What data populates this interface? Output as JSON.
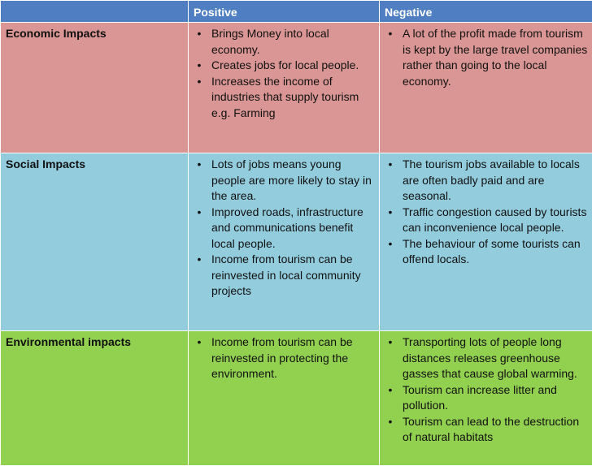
{
  "header": {
    "corner": "",
    "positive": "Positive",
    "negative": "Negative"
  },
  "bullet_glyph": "•",
  "rows": [
    {
      "label": "Economic Impacts",
      "positive": [
        "Brings Money into local economy.",
        "Creates jobs for local people.",
        "Increases the income of industries that supply tourism e.g. Farming"
      ],
      "negative": [
        "A lot of the profit made from tourism is kept by the large travel companies rather than going to the local economy."
      ]
    },
    {
      "label": "Social Impacts",
      "positive": [
        "Lots of jobs means young people are more likely to stay in the area.",
        "Improved roads, infrastructure and communications benefit local people.",
        "Income from tourism can be reinvested in local community projects"
      ],
      "negative": [
        "The tourism jobs available to locals are often badly paid and are seasonal.",
        "Traffic congestion caused by tourists can inconvenience local people.",
        "The behaviour of some tourists can offend locals."
      ]
    },
    {
      "label": "Environmental impacts",
      "positive": [
        "Income from tourism can be reinvested in protecting the environment."
      ],
      "negative": [
        "Transporting lots of people long distances releases greenhouse gasses that cause global warming.",
        "Tourism can increase litter and pollution.",
        "Tourism can lead to the destruction of natural habitats"
      ]
    }
  ]
}
